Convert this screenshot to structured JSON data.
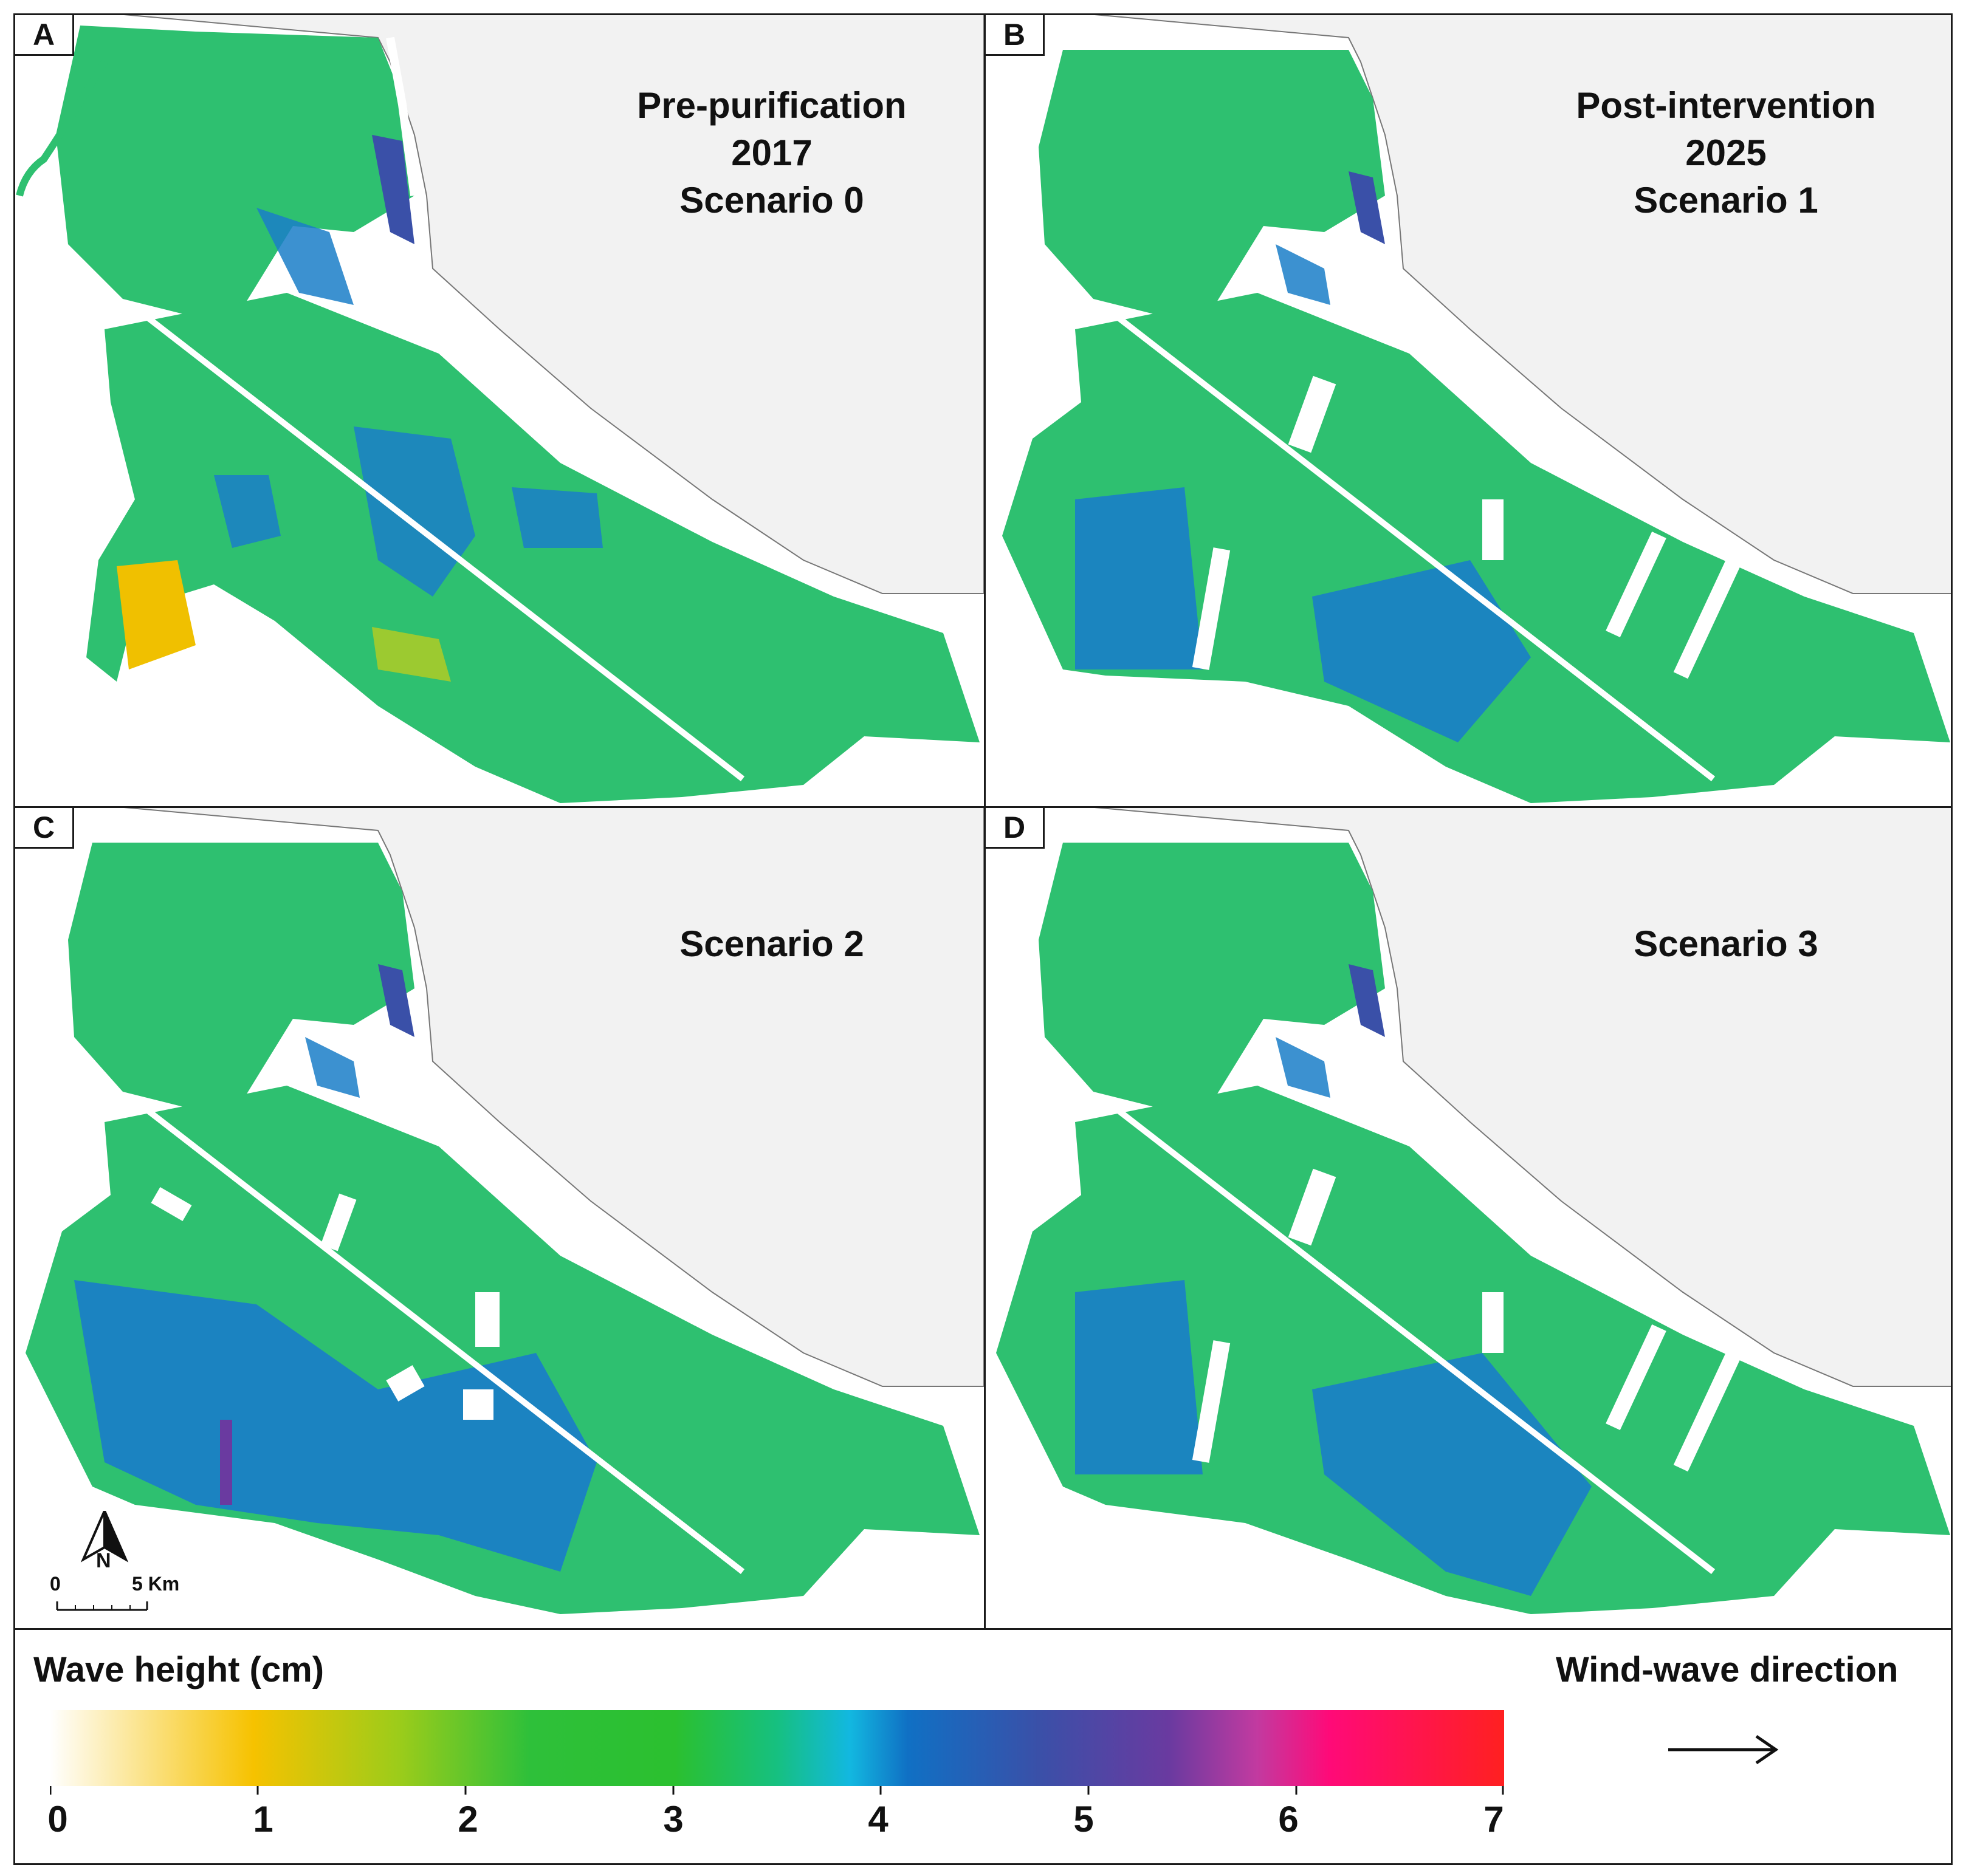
{
  "panels": [
    {
      "letter": "A",
      "title_lines": [
        "Pre-purification",
        "2017",
        "Scenario 0"
      ]
    },
    {
      "letter": "B",
      "title_lines": [
        "Post-intervention",
        "2025",
        "Scenario 1"
      ]
    },
    {
      "letter": "C",
      "title_lines": [
        "Scenario 2"
      ]
    },
    {
      "letter": "D",
      "title_lines": [
        "Scenario 3"
      ]
    }
  ],
  "north_arrow": {
    "label": "N"
  },
  "scale_bar": {
    "start_label": "0",
    "end_label": "5 Km"
  },
  "legend": {
    "title": "Wave height (cm)",
    "ticks": [
      "0",
      "1",
      "2",
      "3",
      "4",
      "5",
      "6",
      "7"
    ],
    "direction_title": "Wind-wave direction"
  },
  "colors": {
    "sea": "#f2f2f2",
    "lagoon_low": "#2ec070",
    "lagoon_deep": "#1a7ec8",
    "outline": "#1a1a1a"
  },
  "icons": [
    "north-arrow-icon",
    "wind-wave-arrow-icon",
    "direction-arrow-field"
  ]
}
